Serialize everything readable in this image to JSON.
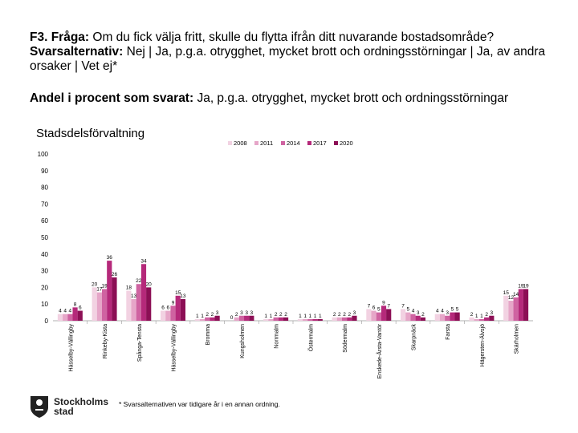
{
  "header": {
    "question_prefix": "F3. Fråga:",
    "question_text": " Om du fick välja fritt, skulle du flytta ifrån ditt nuvarande bostadsområde?",
    "answers_prefix": "Svarsalternativ:",
    "answers_text": " Nej | Ja, p.g.a. otrygghet, mycket brott och ordningsstörningar | Ja, av andra orsaker | Vet ej*"
  },
  "subtitle": {
    "prefix": "Andel i procent som svarat:",
    "text": " Ja, p.g.a. otrygghet, mycket brott och ordningsstörningar"
  },
  "footnote": "* Svarsalternativen var tidigare år i en annan ordning.",
  "logo": {
    "line1": "Stockholms",
    "line2": "stad"
  },
  "chart_data": {
    "type": "bar",
    "title": "Stadsdelsförvaltning",
    "ylim": [
      0,
      100
    ],
    "yticks": [
      0,
      10,
      20,
      30,
      40,
      50,
      60,
      70,
      80,
      90,
      100
    ],
    "legend_position": "top-right",
    "categories": [
      "Hässelby-Vällingby",
      "Rinkeby-Kista",
      "Spånga-Tensta",
      "Hässelby-Vällingby",
      "Bromma",
      "Kungsholmen",
      "Norrmalm",
      "Östermalm",
      "Södermalm",
      "Enskede-Årsta-Vantör",
      "Skarpnäck",
      "Farsta",
      "Hägersten-Älvsjö",
      "Skärholmen"
    ],
    "category_display": [
      "Hässelby-Vällingby",
      "Rinkeby-Kista",
      "Spånga-Tensta",
      "Hässelby-Vällingby",
      "Bromma",
      "Kungsholmen",
      "Norrmalm",
      "Östermalm",
      "Södermalm",
      "Enskede-Årsta-Vantör",
      "Skarpnäck",
      "Farsta",
      "Hägersten-Älvsjö",
      "Skärholmen"
    ],
    "series": [
      {
        "name": "2008",
        "color": "#f2d2e2",
        "values": [
          4,
          20,
          18,
          6,
          1,
          0,
          1,
          1,
          2,
          7,
          7,
          4,
          2,
          15
        ]
      },
      {
        "name": "2011",
        "color": "#e6a6c8",
        "values": [
          4,
          17,
          13,
          6,
          1,
          2,
          1,
          1,
          2,
          6,
          5,
          4,
          1,
          12
        ]
      },
      {
        "name": "2014",
        "color": "#cf63a1",
        "values": [
          4,
          19,
          22,
          9,
          2,
          3,
          2,
          1,
          2,
          5,
          4,
          3,
          1,
          14
        ]
      },
      {
        "name": "2017",
        "color": "#b5297a",
        "values": [
          8,
          36,
          34,
          15,
          2,
          3,
          2,
          1,
          2,
          9,
          3,
          5,
          2,
          19
        ]
      },
      {
        "name": "2020",
        "color": "#8c0f55",
        "values": [
          6,
          26,
          20,
          13,
          3,
          3,
          2,
          1,
          3,
          7,
          2,
          5,
          3,
          19
        ]
      }
    ]
  }
}
